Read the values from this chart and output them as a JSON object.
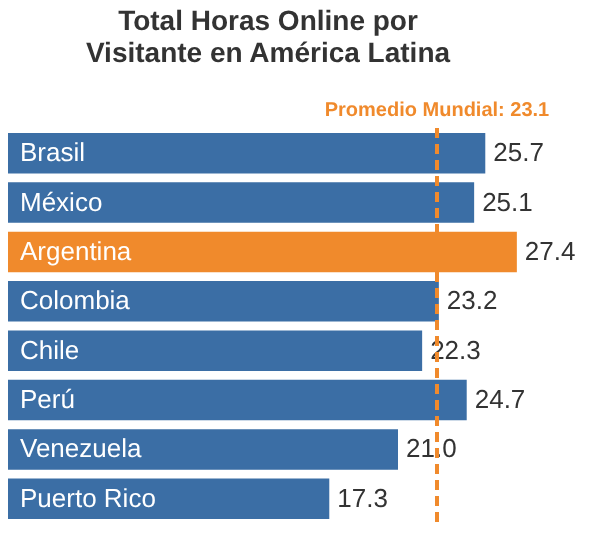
{
  "chart_data": {
    "type": "bar",
    "orientation": "horizontal",
    "title": "Total Horas Online por Visitante en América Latina",
    "categories": [
      "Brasil",
      "México",
      "Argentina",
      "Colombia",
      "Chile",
      "Perú",
      "Venezuela",
      "Puerto Rico"
    ],
    "values": [
      25.7,
      25.1,
      27.4,
      23.2,
      22.3,
      24.7,
      21.0,
      17.3
    ],
    "value_labels": [
      "25.7",
      "25.1",
      "27.4",
      "23.2",
      "22.3",
      "24.7",
      "21.0",
      "17.3"
    ],
    "colors": [
      "#3b6ea5",
      "#3b6ea5",
      "#f08a2c",
      "#3b6ea5",
      "#3b6ea5",
      "#3b6ea5",
      "#3b6ea5",
      "#3b6ea5"
    ],
    "ref_lines": [
      {
        "axis": "x",
        "value": 23.1,
        "label": "Promedio Mundial: 23.1",
        "color": "#f08a2c",
        "line_style": "dashed"
      }
    ],
    "grid": false,
    "tick_labels": false
  }
}
